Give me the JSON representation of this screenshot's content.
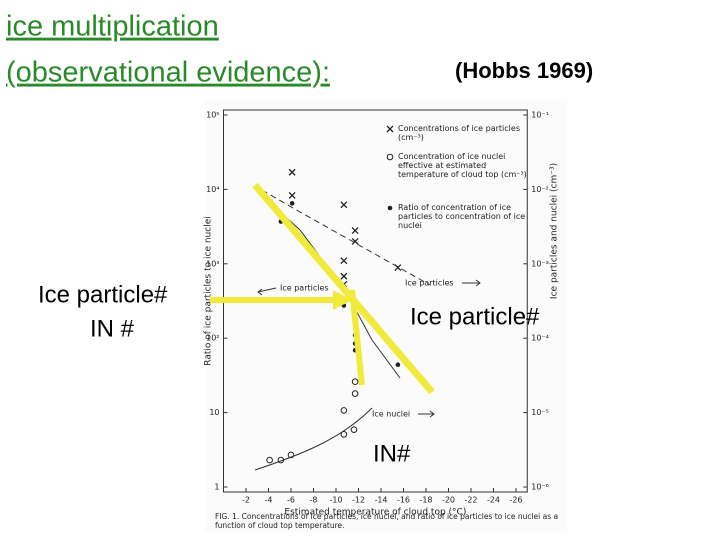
{
  "slide": {
    "title": [
      "ice multiplication",
      "(observational evidence):"
    ],
    "citation": "(Hobbs 1969)",
    "annotations": {
      "left_top": "Ice particle#",
      "left_bottom": "IN #",
      "middle": "Ice particle#",
      "bottom": "IN#"
    }
  },
  "chart_data": {
    "type": "scatter",
    "xlabel": "Estimated temperature of cloud top (°C)",
    "ylabel": "Ratio of ice particles to ice nuclei",
    "y2label": "Ice particles and nuclei (cm⁻³)",
    "caption": "FIG. 1. Concentrations of ice particles, ice nuclei, and ratio of ice particles to ice nuclei as a function of cloud top temperature.",
    "xlim": [
      0,
      -27
    ],
    "xticks": [
      -2,
      -4,
      -6,
      -8,
      -10,
      -12,
      -14,
      -16,
      -18,
      -20,
      -22,
      -24,
      -26
    ],
    "ylim": [
      1,
      100000
    ],
    "yticks": [
      1,
      10,
      {
        "value": 100,
        "label": "10²"
      },
      {
        "value": 1000,
        "label": "10³"
      },
      {
        "value": 10000,
        "label": "10⁴"
      },
      {
        "value": 100000,
        "label": "10⁵"
      }
    ],
    "ylog": true,
    "y2lim": [
      1e-06,
      0.1
    ],
    "y2ticks": [
      {
        "value": 1e-06,
        "label": "10⁻⁶"
      },
      {
        "value": 1e-05,
        "label": "10⁻⁵"
      },
      {
        "value": 0.0001,
        "label": "10⁻⁴"
      },
      {
        "value": 0.001,
        "label": "10⁻³"
      },
      {
        "value": 0.01,
        "label": "10⁻²"
      },
      {
        "value": 0.1,
        "label": "10⁻¹"
      }
    ],
    "y2log": true,
    "grid": false,
    "legend": "top-right",
    "series": [
      {
        "name": "Concentrations of ice particles (cm⁻³)",
        "marker": "x",
        "color": "#222222",
        "axis": "y2",
        "x": [
          -6.1,
          -6.1,
          -10.7,
          -11.7,
          -11.7,
          -10.7,
          -10.7,
          -10.7,
          -15.5
        ],
        "values": [
          0.017,
          0.0083,
          0.0062,
          0.0028,
          0.002,
          0.0011,
          0.00068,
          0.00053,
          0.00089
        ]
      },
      {
        "name": "Concentration of ice nuclei effective at estimated temperature of cloud top (cm⁻³)",
        "marker": "open-circle",
        "color": "#222222",
        "axis": "y2",
        "x": [
          -4.1,
          -5.1,
          -6.0,
          -10.7,
          -11.6,
          -10.7,
          -11.7,
          -11.7
        ],
        "values": [
          2.3e-06,
          2.3e-06,
          2.7e-06,
          5.1e-06,
          5.9e-06,
          1.07e-05,
          1.8e-05,
          2.6e-05
        ]
      },
      {
        "name": "Ratio of concentration of ice particles to concentration of ice nuclei",
        "marker": "dot",
        "color": "#222222",
        "x": [
          -5.1,
          -6.1,
          -4.2,
          -11.7,
          -11.7,
          -11.7,
          -10.7,
          -15.5
        ],
        "values": [
          3700,
          6500,
          6900,
          110,
          85,
          69,
          275,
          44
        ]
      }
    ],
    "annotations": [
      "Ice particles",
      "Ice particles",
      "Ice nuclei"
    ]
  }
}
